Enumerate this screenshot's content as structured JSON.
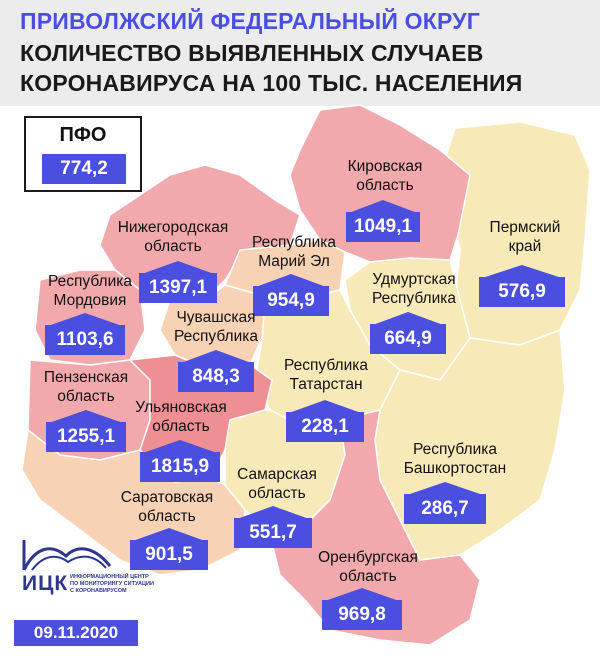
{
  "header": {
    "line1": "ПРИВОЛЖСКИЙ ФЕДЕРАЛЬНЫЙ ОКРУГ",
    "line2": "КОЛИЧЕСТВО ВЫЯВЛЕННЫХ СЛУЧАЕВ",
    "line3": "КОРОНАВИРУСА НА 100 ТЫС. НАСЕЛЕНИЯ"
  },
  "total": {
    "name": "ПФО",
    "value": "774,2"
  },
  "regions": {
    "kirov": {
      "line1": "Кировская",
      "line2": "область",
      "value": "1049,1",
      "fill": "#f1a9ad"
    },
    "perm": {
      "line1": "Пермский",
      "line2": "край",
      "value": "576,9",
      "fill": "#f8eab8"
    },
    "nizhny": {
      "line1": "Нижегородская",
      "line2": "область",
      "value": "1397,1",
      "fill": "#f1a9ad"
    },
    "mari": {
      "line1": "Республика",
      "line2": "Марий Эл",
      "value": "954,9",
      "fill": "#f8d2b4"
    },
    "udmurtia": {
      "line1": "Удмуртская",
      "line2": "Республика",
      "value": "664,9",
      "fill": "#f8eab8"
    },
    "mordovia": {
      "line1": "Республика",
      "line2": "Мордовия",
      "value": "1103,6",
      "fill": "#f1a9ad"
    },
    "chuvashia": {
      "line1": "Чувашская",
      "line2": "Республика",
      "value": "848,3",
      "fill": "#f8d2b4"
    },
    "tatarstan": {
      "line1": "Республика",
      "line2": "Татарстан",
      "value": "228,1",
      "fill": "#f8eab8"
    },
    "penza": {
      "line1": "Пензенская",
      "line2": "область",
      "value": "1255,1",
      "fill": "#f1a9ad"
    },
    "ulyanovsk": {
      "line1": "Ульяновская",
      "line2": "область",
      "value": "1815,9",
      "fill": "#ee8f94"
    },
    "bashkortostan": {
      "line1": "Республика",
      "line2": "Башкортостан",
      "value": "286,7",
      "fill": "#f8eab8"
    },
    "samara": {
      "line1": "Самарская",
      "line2": "область",
      "value": "551,7",
      "fill": "#f8eab8"
    },
    "saratov": {
      "line1": "Саратовская",
      "line2": "область",
      "value": "901,5",
      "fill": "#f8d2b4"
    },
    "orenburg": {
      "line1": "Оренбургская",
      "line2": "область",
      "value": "969,8",
      "fill": "#f1a9ad"
    }
  },
  "logo": {
    "abbr": "ИЦК",
    "sub1": "ИНФОРМАЦИОННЫЙ ЦЕНТР",
    "sub2": "ПО МОНИТОРИНГУ СИТУАЦИИ",
    "sub3": "С КОРОНАВИРУСОМ"
  },
  "date": "09.11.2020",
  "colors": {
    "accent": "#4a4fe0",
    "header_bg": "#ececec",
    "border": "#ffffff"
  }
}
